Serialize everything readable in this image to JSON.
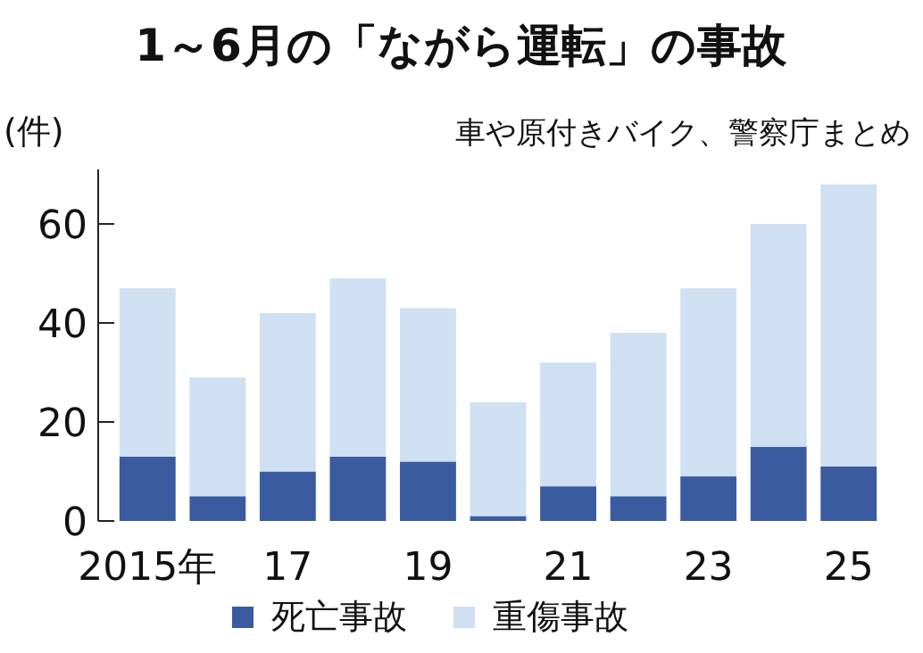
{
  "chart_data": {
    "type": "bar",
    "title": "1～6月の「ながら運転」の事故",
    "subtitle": "車や原付きバイク、警察庁まとめ",
    "ylabel": "(件)",
    "categories": [
      "2015年",
      null,
      "17",
      null,
      "19",
      null,
      "21",
      null,
      "23",
      null,
      "25"
    ],
    "stacked": true,
    "ylim": [
      0,
      71
    ],
    "yticks": [
      0,
      20,
      40,
      60
    ],
    "legend": "bottom",
    "series": [
      {
        "name": "死亡事故",
        "color": "#3b5ba0",
        "values": [
          13,
          5,
          10,
          13,
          12,
          1,
          7,
          5,
          9,
          15,
          11
        ]
      },
      {
        "name": "重傷事故",
        "color": "#cfe0f3",
        "values": [
          34,
          24,
          32,
          36,
          31,
          23,
          25,
          33,
          38,
          45,
          57
        ]
      }
    ]
  }
}
